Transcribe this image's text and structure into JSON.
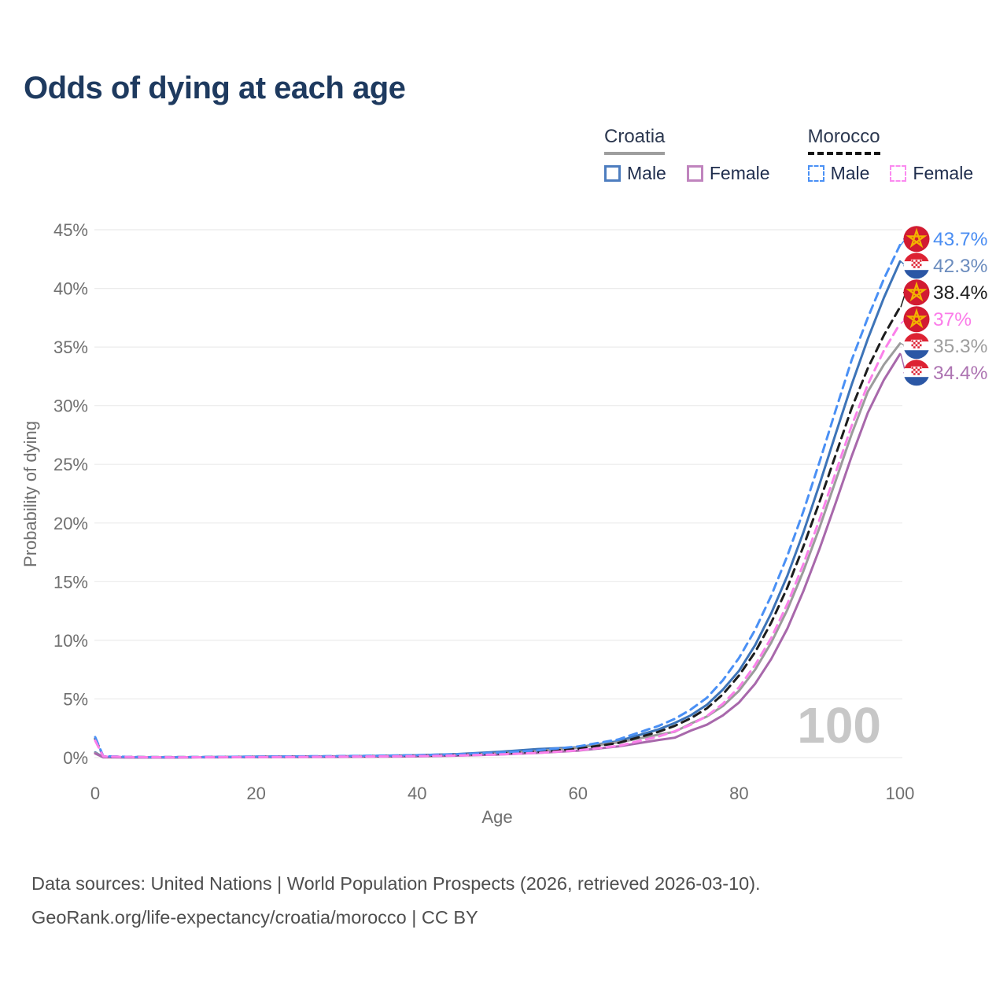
{
  "title": "Odds of dying at each age",
  "legend": {
    "groups": [
      {
        "id": "croatia",
        "label": "Croatia",
        "style": "solid",
        "rule_color": "#9e9e9e",
        "items": [
          {
            "label": "Male",
            "color": "#4d7dbf",
            "style": "solid"
          },
          {
            "label": "Female",
            "color": "#c084be",
            "style": "solid"
          }
        ]
      },
      {
        "id": "morocco",
        "label": "Morocco",
        "style": "dashed",
        "rule_color": "#141414",
        "items": [
          {
            "label": "Male",
            "color": "#4a90f5",
            "style": "dashed"
          },
          {
            "label": "Female",
            "color": "#fb8af0",
            "style": "dashed"
          }
        ]
      }
    ]
  },
  "chart_data": {
    "type": "line",
    "title": "Odds of dying at each age",
    "xlabel": "Age",
    "ylabel": "Probability of dying",
    "xlim": [
      0,
      100
    ],
    "ylim": [
      0,
      45
    ],
    "xticks": [
      0,
      20,
      40,
      60,
      80,
      100
    ],
    "yticks": [
      0,
      5,
      10,
      15,
      20,
      25,
      30,
      35,
      40,
      45
    ],
    "ytick_suffix": "%",
    "grid": true,
    "legend_position": "top-right",
    "watermark": "100",
    "x": [
      0,
      1,
      5,
      10,
      15,
      20,
      25,
      30,
      35,
      40,
      45,
      50,
      55,
      60,
      65,
      70,
      72,
      74,
      76,
      78,
      80,
      82,
      84,
      86,
      88,
      90,
      92,
      94,
      96,
      98,
      100
    ],
    "z_order": [
      "croatia-male",
      "croatia-both",
      "croatia-female",
      "morocco-both",
      "morocco-male",
      "morocco-female"
    ],
    "series": [
      {
        "id": "morocco-male",
        "country": "Morocco",
        "sex": "Male",
        "style": "dashed",
        "color": "#4a90f5",
        "label_color": "#4a8df2",
        "end_label": "43.7%",
        "flag": "morocco",
        "values": [
          1.75,
          0.12,
          0.05,
          0.04,
          0.06,
          0.09,
          0.11,
          0.13,
          0.16,
          0.21,
          0.29,
          0.42,
          0.62,
          0.95,
          1.55,
          2.7,
          3.3,
          4.1,
          5.1,
          6.6,
          8.5,
          10.9,
          13.8,
          17.2,
          21.0,
          25.2,
          29.6,
          33.9,
          37.5,
          40.8,
          43.7
        ]
      },
      {
        "id": "croatia-male",
        "country": "Croatia",
        "sex": "Male",
        "style": "solid",
        "color": "#3d74b8",
        "label_color": "#6b8cbe",
        "end_label": "42.3%",
        "flag": "croatia",
        "values": [
          0.45,
          0.04,
          0.02,
          0.02,
          0.05,
          0.09,
          0.1,
          0.11,
          0.14,
          0.2,
          0.3,
          0.48,
          0.73,
          0.88,
          1.4,
          2.4,
          2.95,
          3.6,
          4.5,
          5.8,
          7.4,
          9.6,
          12.3,
          15.5,
          19.2,
          23.3,
          27.6,
          31.8,
          35.7,
          39.2,
          42.3
        ]
      },
      {
        "id": "morocco-both",
        "country": "Morocco",
        "sex": "Both sexes",
        "style": "dashed",
        "color": "#1d1d1d",
        "label_color": "#1d1d1d",
        "end_label": "38.4%",
        "flag": "morocco",
        "values": [
          1.6,
          0.11,
          0.05,
          0.04,
          0.05,
          0.07,
          0.09,
          0.1,
          0.13,
          0.17,
          0.23,
          0.34,
          0.5,
          0.76,
          1.25,
          2.2,
          2.7,
          3.35,
          4.2,
          5.4,
          7.0,
          9.0,
          11.5,
          14.5,
          18.0,
          21.8,
          25.8,
          29.8,
          33.2,
          36.0,
          38.4
        ]
      },
      {
        "id": "morocco-female",
        "country": "Morocco",
        "sex": "Female",
        "style": "dashed",
        "color": "#fb80ea",
        "label_color": "#fb7ce9",
        "end_label": "37%",
        "flag": "morocco",
        "values": [
          1.45,
          0.1,
          0.04,
          0.03,
          0.04,
          0.05,
          0.06,
          0.08,
          0.1,
          0.13,
          0.18,
          0.27,
          0.4,
          0.62,
          1.0,
          1.8,
          2.25,
          2.8,
          3.55,
          4.6,
          6.0,
          7.9,
          10.2,
          13.1,
          16.5,
          20.3,
          24.3,
          28.3,
          31.8,
          34.7,
          37.0
        ]
      },
      {
        "id": "croatia-both",
        "country": "Croatia",
        "sex": "Both sexes",
        "style": "solid",
        "color": "#9c9c9c",
        "label_color": "#9e9e9e",
        "end_label": "35.3%",
        "flag": "croatia",
        "values": [
          0.4,
          0.04,
          0.02,
          0.02,
          0.04,
          0.06,
          0.07,
          0.08,
          0.1,
          0.14,
          0.22,
          0.35,
          0.55,
          0.85,
          1.3,
          1.95,
          2.2,
          2.9,
          3.5,
          4.4,
          5.7,
          7.5,
          9.8,
          12.6,
          15.9,
          19.6,
          23.6,
          27.6,
          31.2,
          33.5,
          35.3
        ]
      },
      {
        "id": "croatia-female",
        "country": "Croatia",
        "sex": "Female",
        "style": "solid",
        "color": "#a868ab",
        "label_color": "#ad74b2",
        "end_label": "34.4%",
        "flag": "croatia",
        "values": [
          0.35,
          0.03,
          0.02,
          0.02,
          0.03,
          0.04,
          0.05,
          0.06,
          0.08,
          0.11,
          0.17,
          0.26,
          0.4,
          0.6,
          0.95,
          1.5,
          1.7,
          2.3,
          2.8,
          3.6,
          4.7,
          6.3,
          8.4,
          11.0,
          14.2,
          17.8,
          21.7,
          25.7,
          29.4,
          32.2,
          34.4
        ]
      }
    ]
  },
  "footer": {
    "line1": "Data sources: United Nations | World Population Prospects (2026, retrieved 2026-03-10).",
    "line2": "GeoRank.org/life-expectancy/croatia/morocco | CC BY"
  }
}
